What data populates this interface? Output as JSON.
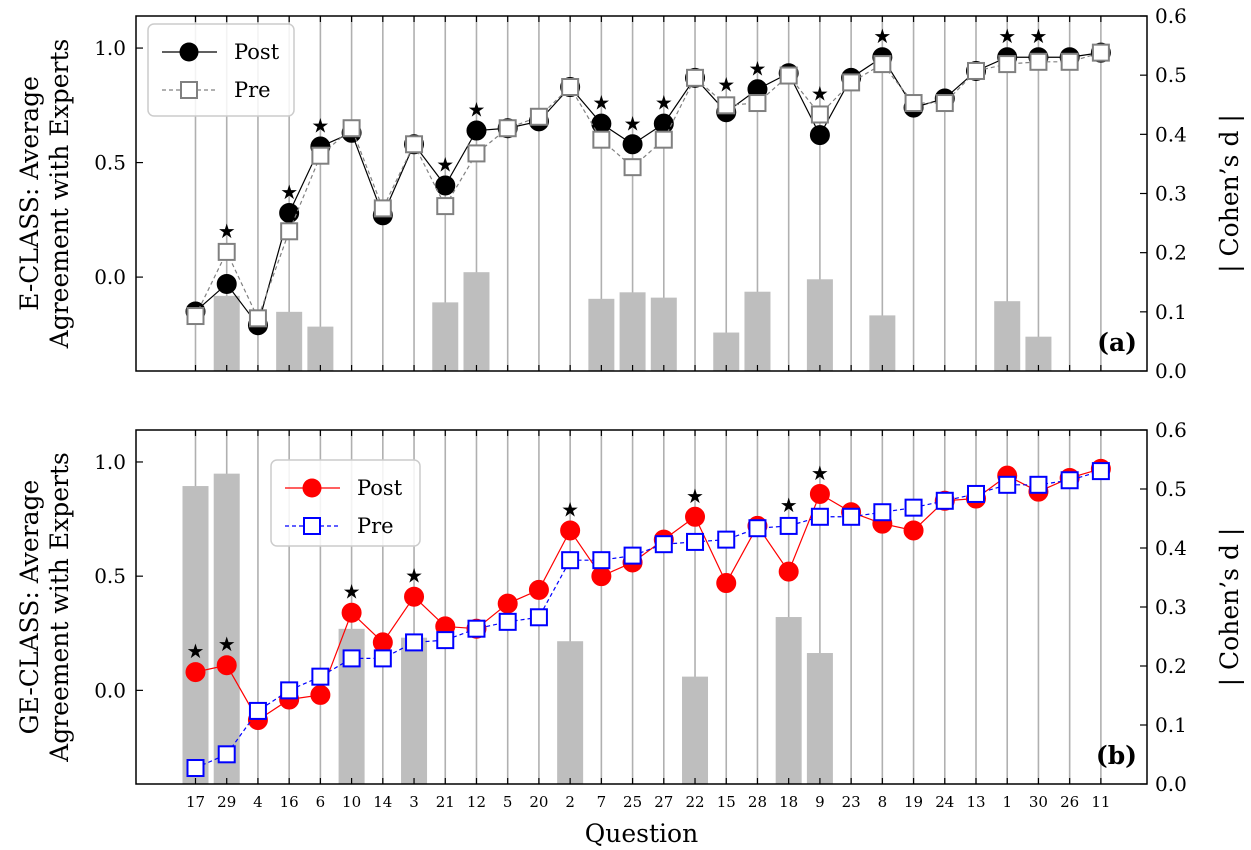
{
  "chart_data": [
    {
      "type": "bar+line",
      "panel_label": "(a)",
      "ylabel": "E-CLASS: Average\nAgreement with Experts",
      "y2label": "| Cohen’s d |",
      "xlabel": "",
      "ylim": [
        -0.41,
        1.14
      ],
      "y2lim": [
        0,
        0.6
      ],
      "yticks": [
        0.0,
        0.5,
        1.0
      ],
      "y2ticks": [
        0.0,
        0.1,
        0.2,
        0.3,
        0.4,
        0.5,
        0.6
      ],
      "grid": "vertical lines at each question",
      "legend_position": "top-left",
      "categories": [
        "17",
        "29",
        "4",
        "16",
        "6",
        "10",
        "14",
        "3",
        "21",
        "12",
        "5",
        "20",
        "2",
        "7",
        "25",
        "27",
        "22",
        "15",
        "28",
        "18",
        "9",
        "23",
        "8",
        "19",
        "24",
        "13",
        "1",
        "30",
        "26",
        "11"
      ],
      "series": [
        {
          "name": "Post",
          "kind": "line",
          "marker": "filled-circle",
          "color": "#000000",
          "values": [
            -0.15,
            -0.03,
            -0.21,
            0.28,
            0.57,
            0.63,
            0.27,
            0.58,
            0.4,
            0.64,
            0.65,
            0.68,
            0.83,
            0.67,
            0.58,
            0.67,
            0.87,
            0.72,
            0.82,
            0.89,
            0.62,
            0.87,
            0.96,
            0.74,
            0.78,
            0.9,
            0.96,
            0.96,
            0.96,
            0.98
          ]
        },
        {
          "name": "Pre",
          "kind": "line",
          "marker": "open-square",
          "color": "#808080",
          "values": [
            -0.17,
            0.11,
            -0.18,
            0.2,
            0.53,
            0.65,
            0.3,
            0.58,
            0.31,
            0.54,
            0.65,
            0.7,
            0.83,
            0.6,
            0.48,
            0.6,
            0.87,
            0.75,
            0.76,
            0.88,
            0.71,
            0.85,
            0.93,
            0.76,
            0.76,
            0.9,
            0.93,
            0.94,
            0.94,
            0.98
          ]
        },
        {
          "name": "| Cohen’s d |",
          "kind": "bar",
          "axis": "right",
          "color": "#bebebe",
          "values": [
            0,
            0.127,
            0,
            0.1,
            0.075,
            0,
            0,
            0,
            0.116,
            0.167,
            0,
            0,
            0,
            0.122,
            0.133,
            0.124,
            0,
            0.065,
            0.134,
            0,
            0.155,
            0,
            0.094,
            0,
            0,
            0,
            0.118,
            0.058,
            0,
            0
          ]
        }
      ],
      "significance_stars": [
        "29",
        "16",
        "6",
        "21",
        "12",
        "7",
        "25",
        "27",
        "15",
        "28",
        "9",
        "8",
        "1",
        "30"
      ],
      "star_glyph": "★"
    },
    {
      "type": "bar+line",
      "panel_label": "(b)",
      "ylabel": "GE-CLASS: Average\nAgreement with Experts",
      "y2label": "| Cohen’s d |",
      "xlabel": "Question",
      "ylim": [
        -0.41,
        1.14
      ],
      "y2lim": [
        0,
        0.6
      ],
      "yticks": [
        0.0,
        0.5,
        1.0
      ],
      "y2ticks": [
        0.0,
        0.1,
        0.2,
        0.3,
        0.4,
        0.5,
        0.6
      ],
      "grid": "vertical lines at each question",
      "legend_position": "top-left",
      "categories": [
        "17",
        "29",
        "4",
        "16",
        "6",
        "10",
        "14",
        "3",
        "21",
        "12",
        "5",
        "20",
        "2",
        "7",
        "25",
        "27",
        "22",
        "15",
        "28",
        "18",
        "9",
        "23",
        "8",
        "19",
        "24",
        "13",
        "1",
        "30",
        "26",
        "11"
      ],
      "series": [
        {
          "name": "Post",
          "kind": "line",
          "marker": "filled-circle",
          "color": "#ff0000",
          "values": [
            0.08,
            0.11,
            -0.13,
            -0.04,
            -0.02,
            0.34,
            0.21,
            0.41,
            0.28,
            0.27,
            0.38,
            0.44,
            0.7,
            0.5,
            0.56,
            0.66,
            0.76,
            0.47,
            0.72,
            0.52,
            0.86,
            0.78,
            0.73,
            0.7,
            0.83,
            0.84,
            0.94,
            0.87,
            0.93,
            0.97
          ]
        },
        {
          "name": "Pre",
          "kind": "line",
          "marker": "open-square",
          "color": "#0000ff",
          "values": [
            -0.34,
            -0.28,
            -0.09,
            0.0,
            0.06,
            0.14,
            0.14,
            0.21,
            0.22,
            0.27,
            0.3,
            0.32,
            0.57,
            0.57,
            0.59,
            0.64,
            0.65,
            0.66,
            0.71,
            0.72,
            0.76,
            0.76,
            0.78,
            0.8,
            0.83,
            0.86,
            0.9,
            0.9,
            0.92,
            0.96
          ]
        },
        {
          "name": "| Cohen’s d |",
          "kind": "bar",
          "axis": "right",
          "color": "#bebebe",
          "values": [
            0.505,
            0.526,
            0,
            0,
            0,
            0.263,
            0,
            0.248,
            0,
            0,
            0,
            0,
            0.242,
            0,
            0,
            0,
            0.182,
            0,
            0,
            0.283,
            0.222,
            0,
            0,
            0,
            0,
            0,
            0,
            0,
            0,
            0
          ]
        }
      ],
      "significance_stars": [
        "17",
        "29",
        "10",
        "3",
        "2",
        "22",
        "18",
        "9"
      ],
      "star_glyph": "★"
    }
  ]
}
